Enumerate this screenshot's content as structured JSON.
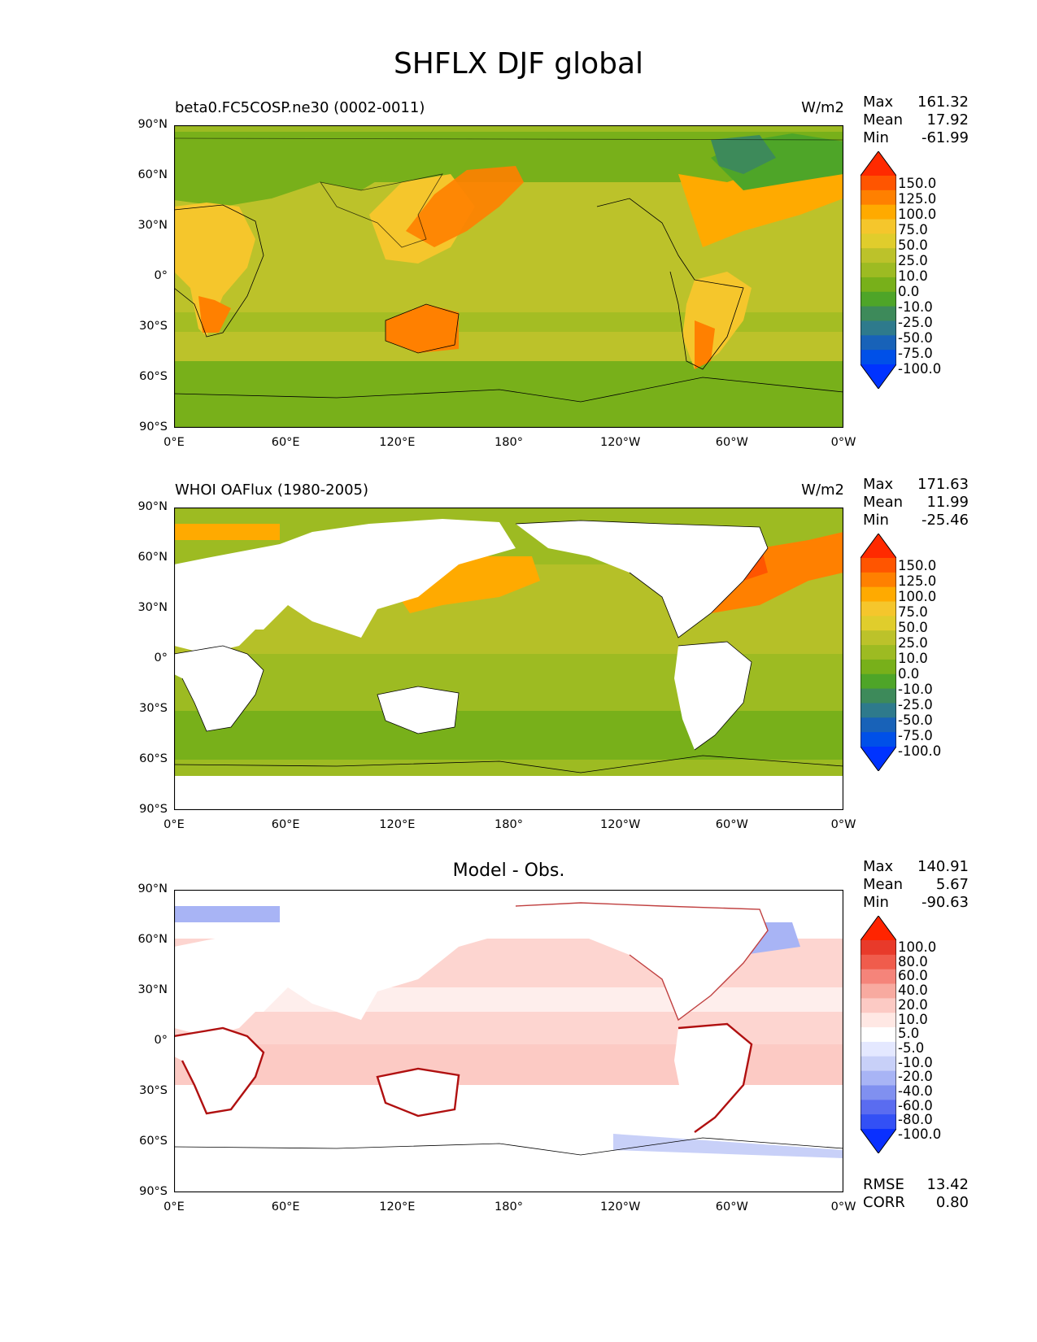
{
  "figure": {
    "title": "SHFLX DJF global"
  },
  "axes": {
    "ylabels": [
      "90°N",
      "60°N",
      "30°N",
      "0°",
      "30°S",
      "60°S",
      "90°S"
    ],
    "xlabels": [
      "0°E",
      "60°E",
      "120°E",
      "180°",
      "120°W",
      "60°W",
      "0°W"
    ]
  },
  "panels": [
    {
      "title": "beta0.FC5COSP.ne30 (0002-0011)",
      "units": "W/m2",
      "center_title": "",
      "stats": [
        {
          "label": "Max",
          "value": "161.32"
        },
        {
          "label": "Mean",
          "value": "17.92"
        },
        {
          "label": "Min",
          "value": "-61.99"
        }
      ],
      "colorbar_labels": [
        "150.0",
        "125.0",
        "100.0",
        "75.0",
        "50.0",
        "25.0",
        "10.0",
        "0.0",
        "-10.0",
        "-25.0",
        "-50.0",
        "-75.0",
        "-100.0"
      ]
    },
    {
      "title": "WHOI OAFlux (1980-2005)",
      "units": "W/m2",
      "center_title": "",
      "stats": [
        {
          "label": "Max",
          "value": "171.63"
        },
        {
          "label": "Mean",
          "value": "11.99"
        },
        {
          "label": "Min",
          "value": "-25.46"
        }
      ],
      "colorbar_labels": [
        "150.0",
        "125.0",
        "100.0",
        "75.0",
        "50.0",
        "25.0",
        "10.0",
        "0.0",
        "-10.0",
        "-25.0",
        "-50.0",
        "-75.0",
        "-100.0"
      ]
    },
    {
      "title": "",
      "units": "",
      "center_title": "Model - Obs.",
      "stats": [
        {
          "label": "Max",
          "value": "140.91"
        },
        {
          "label": "Mean",
          "value": "5.67"
        },
        {
          "label": "Min",
          "value": "-90.63"
        }
      ],
      "colorbar_labels": [
        "100.0",
        "80.0",
        "60.0",
        "40.0",
        "20.0",
        "10.0",
        "5.0",
        "-5.0",
        "-10.0",
        "-20.0",
        "-40.0",
        "-60.0",
        "-80.0",
        "-100.0"
      ],
      "metrics": [
        {
          "label": "RMSE",
          "value": "13.42"
        },
        {
          "label": "CORR",
          "value": "0.80"
        }
      ]
    }
  ],
  "colors": {
    "flux_scale": [
      "#ff2a00",
      "#ff5500",
      "#ff8000",
      "#ffaa00",
      "#f5c62c",
      "#e0cd2c",
      "#bcc22a",
      "#9dbb22",
      "#78b01a",
      "#4ea528",
      "#3d8a5a",
      "#2e7a8c",
      "#1862b8",
      "#0050e8",
      "#0033ff"
    ],
    "diff_scale": [
      "#ff2400",
      "#e83a2a",
      "#f05c4c",
      "#f5847a",
      "#f8aaa0",
      "#fccac4",
      "#ffe8e4",
      "#ffffff",
      "#e4e8ff",
      "#c8d0f8",
      "#a8b4f5",
      "#8090f0",
      "#5a6cf0",
      "#3350f5",
      "#0a30ff"
    ]
  }
}
